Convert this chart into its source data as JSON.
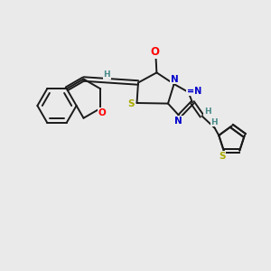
{
  "background_color": "#eaeaea",
  "bond_color": "#1a1a1a",
  "atom_colors": {
    "O": "#ff0000",
    "N": "#0000cc",
    "S": "#aaaa00",
    "H": "#4a8a8a",
    "C": "#1a1a1a"
  },
  "figsize": [
    3.0,
    3.0
  ],
  "dpi": 100
}
